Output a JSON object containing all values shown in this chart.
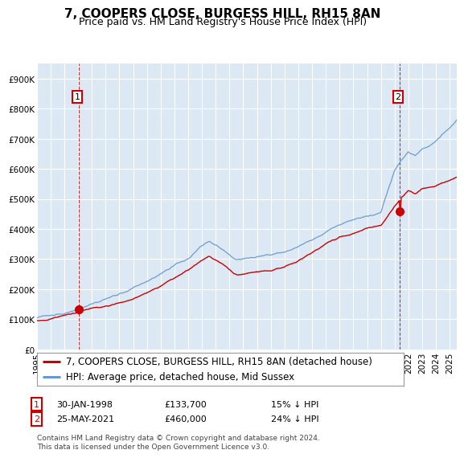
{
  "title": "7, COOPERS CLOSE, BURGESS HILL, RH15 8AN",
  "subtitle": "Price paid vs. HM Land Registry's House Price Index (HPI)",
  "ylim": [
    0,
    950000
  ],
  "yticks": [
    0,
    100000,
    200000,
    300000,
    400000,
    500000,
    600000,
    700000,
    800000,
    900000
  ],
  "ytick_labels": [
    "£0",
    "£100K",
    "£200K",
    "£300K",
    "£400K",
    "£500K",
    "£600K",
    "£700K",
    "£800K",
    "£900K"
  ],
  "purchase1": {
    "date_num": 1998.08,
    "price": 133700,
    "label": "1",
    "date_str": "30-JAN-1998",
    "pct": "15% ↓ HPI"
  },
  "purchase2": {
    "date_num": 2021.39,
    "price": 460000,
    "label": "2",
    "date_str": "25-MAY-2021",
    "pct": "24% ↓ HPI"
  },
  "legend_property": "7, COOPERS CLOSE, BURGESS HILL, RH15 8AN (detached house)",
  "legend_hpi": "HPI: Average price, detached house, Mid Sussex",
  "footer": "Contains HM Land Registry data © Crown copyright and database right 2024.\nThis data is licensed under the Open Government Licence v3.0.",
  "property_color": "#cc0000",
  "hpi_color": "#6699cc",
  "plot_bg_color": "#dce9f5",
  "background_color": "#ffffff",
  "grid_color": "#ffffff",
  "title_fontsize": 11,
  "subtitle_fontsize": 9,
  "tick_fontsize": 7.5,
  "legend_fontsize": 8.5
}
